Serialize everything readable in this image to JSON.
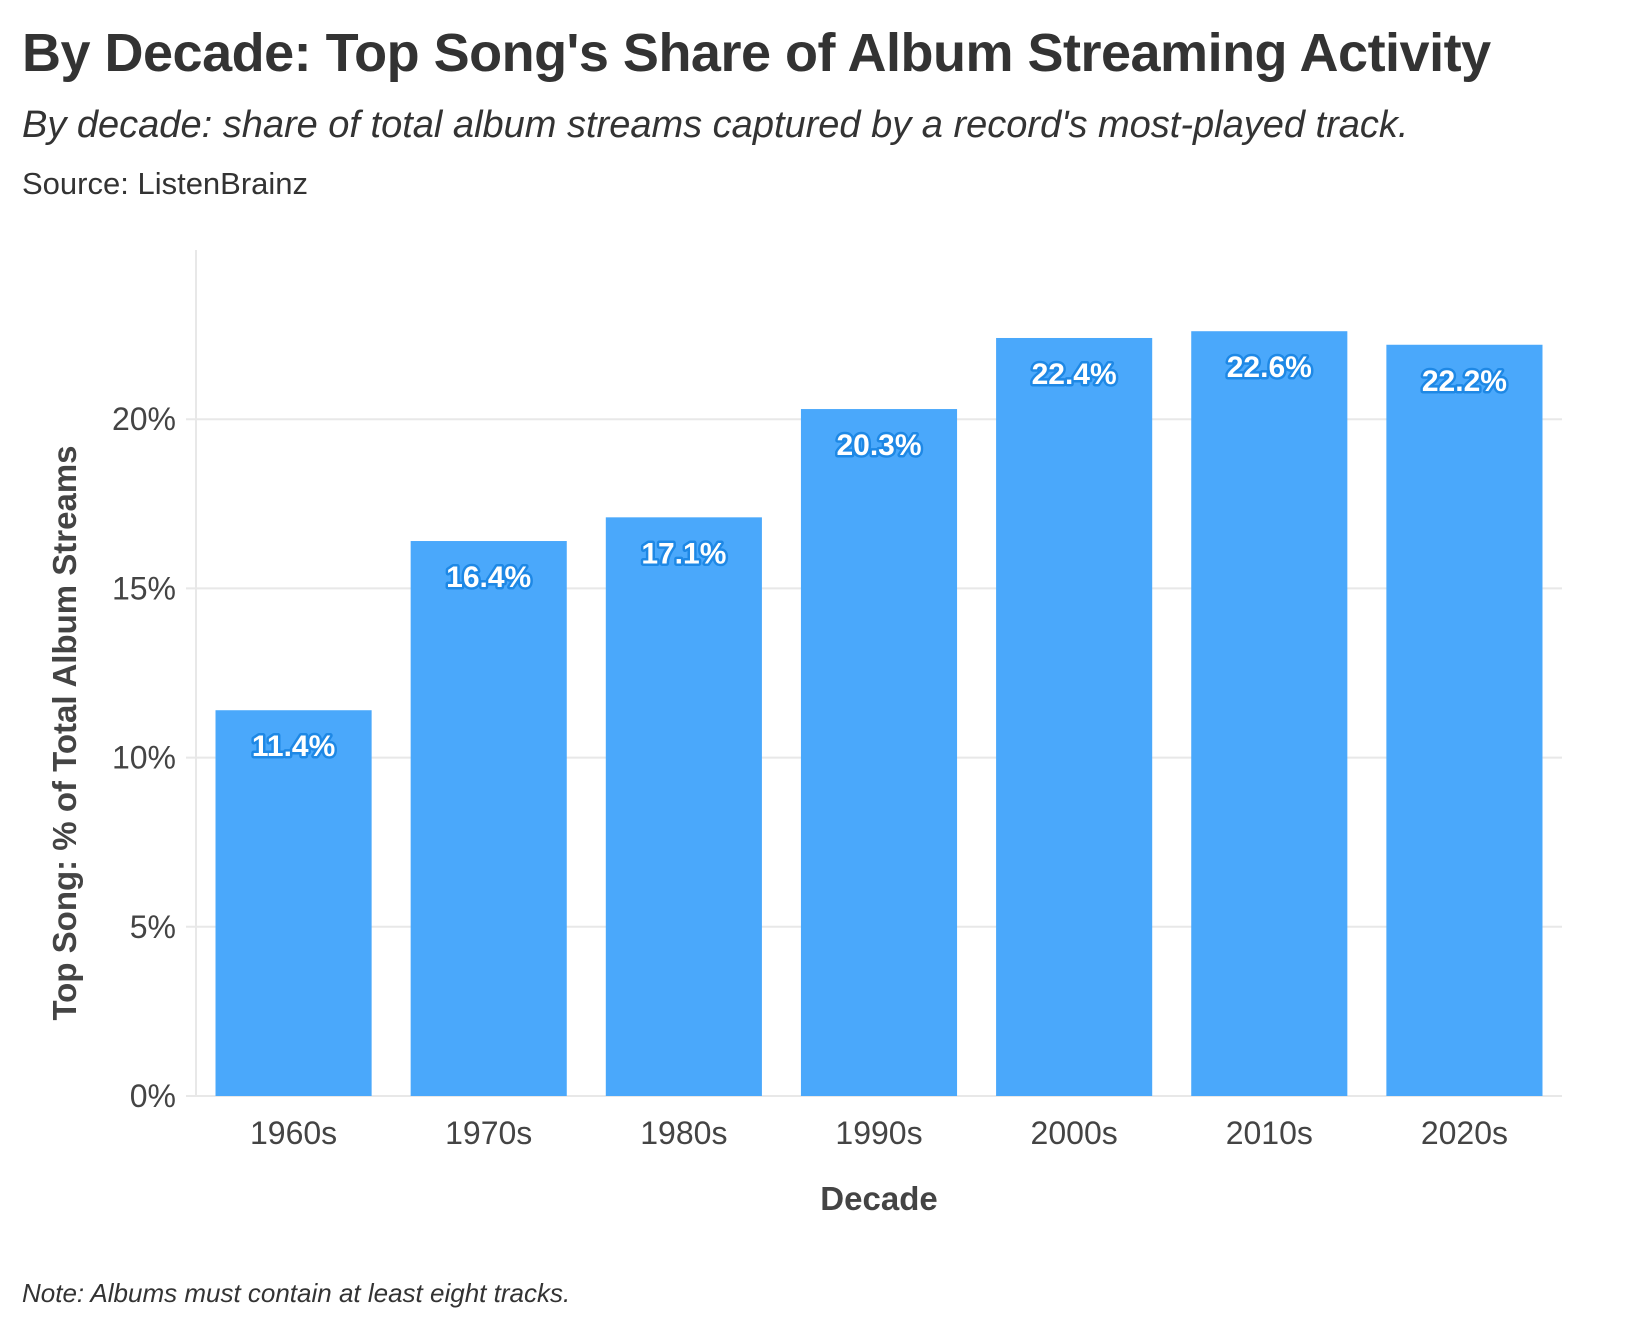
{
  "header": {
    "title": "By Decade: Top Song's Share of Album Streaming Activity",
    "subtitle": "By decade: share of total album streams captured by a record's most-played track.",
    "source": "Source: ListenBrainz"
  },
  "footer": {
    "note": "Note: Albums must contain at least eight tracks."
  },
  "colors": {
    "bar": "#4aa8fb",
    "label_outline": "#1e88e5",
    "grid": "#e8e8e8",
    "text": "#333333"
  },
  "chart_data": {
    "type": "bar",
    "categories": [
      "1960s",
      "1970s",
      "1980s",
      "1990s",
      "2000s",
      "2010s",
      "2020s"
    ],
    "values": [
      11.4,
      16.4,
      17.1,
      20.3,
      22.4,
      22.6,
      22.2
    ],
    "data_labels": [
      "11.4%",
      "16.4%",
      "17.1%",
      "20.3%",
      "22.4%",
      "22.6%",
      "22.2%"
    ],
    "xlabel": "Decade",
    "ylabel": "Top Song: % of Total Album Streams",
    "ylim": [
      0,
      25
    ],
    "yticks": [
      0,
      5,
      10,
      15,
      20
    ],
    "ytick_labels": [
      "0%",
      "5%",
      "10%",
      "15%",
      "20%"
    ],
    "grid": true,
    "legend": "none"
  }
}
